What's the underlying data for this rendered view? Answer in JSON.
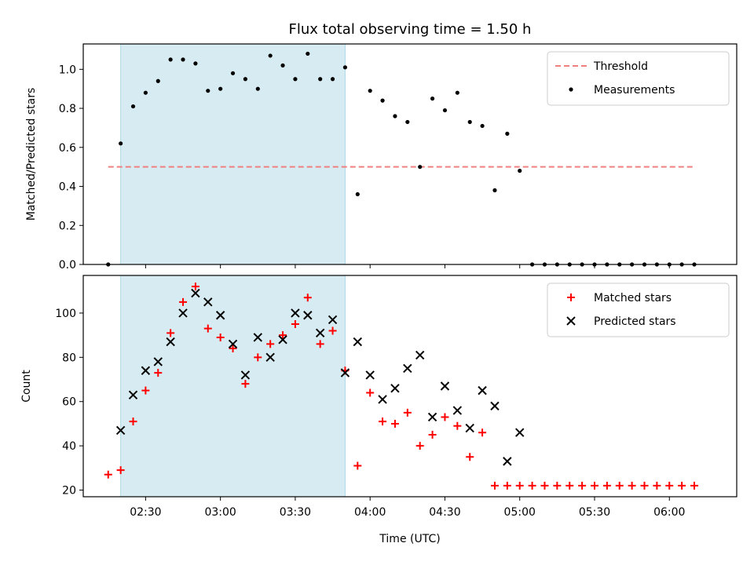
{
  "chart_data": {
    "title": "Flux total observing time = 1.50 h",
    "xlabel": "Time (UTC)",
    "x_unit": "time of day (UTC), minutes shown as HH:MM",
    "xlim": [
      "02:05",
      "06:27"
    ],
    "xticks": [
      "02:30",
      "03:00",
      "03:30",
      "04:00",
      "04:30",
      "05:00",
      "05:30",
      "06:00"
    ],
    "shaded_span": {
      "start": "02:20",
      "end": "03:50",
      "color": "#add8e6"
    },
    "panels": [
      {
        "type": "scatter",
        "ylabel": "Matched/Predicted stars",
        "ylim": [
          0,
          1.13
        ],
        "yticks": [
          "0.0",
          "0.2",
          "0.4",
          "0.6",
          "0.8",
          "1.0"
        ],
        "legend_position": "upper right",
        "threshold": {
          "name": "Threshold",
          "value": 0.5,
          "start": "02:15",
          "end": "06:10",
          "color": "#f08080"
        },
        "series": [
          {
            "name": "Measurements",
            "marker": "dot",
            "color": "#000000",
            "x": [
              "02:15",
              "02:20",
              "02:25",
              "02:30",
              "02:35",
              "02:40",
              "02:45",
              "02:50",
              "02:55",
              "03:00",
              "03:05",
              "03:10",
              "03:15",
              "03:20",
              "03:25",
              "03:30",
              "03:35",
              "03:40",
              "03:45",
              "03:50",
              "03:55",
              "04:00",
              "04:05",
              "04:10",
              "04:15",
              "04:20",
              "04:25",
              "04:30",
              "04:35",
              "04:40",
              "04:45",
              "04:50",
              "04:55",
              "05:00",
              "05:05",
              "05:10",
              "05:15",
              "05:20",
              "05:25",
              "05:30",
              "05:35",
              "05:40",
              "05:45",
              "05:50",
              "05:55",
              "06:00",
              "06:05",
              "06:10"
            ],
            "y": [
              0.0,
              0.62,
              0.81,
              0.88,
              0.94,
              1.05,
              1.05,
              1.03,
              0.89,
              0.9,
              0.98,
              0.95,
              0.9,
              1.07,
              1.02,
              0.95,
              1.08,
              0.95,
              0.95,
              1.01,
              0.36,
              0.89,
              0.84,
              0.76,
              0.73,
              0.5,
              0.85,
              0.79,
              0.88,
              0.73,
              0.71,
              0.38,
              0.67,
              0.48,
              0.0,
              0.0,
              0.0,
              0.0,
              0.0,
              0.0,
              0.0,
              0.0,
              0.0,
              0.0,
              0.0,
              0.0,
              0.0,
              0.0
            ]
          }
        ]
      },
      {
        "type": "scatter",
        "ylabel": "Count",
        "ylim": [
          17,
          117
        ],
        "yticks": [
          "20",
          "40",
          "60",
          "80",
          "100"
        ],
        "legend_position": "upper right",
        "series": [
          {
            "name": "Matched stars",
            "marker": "plus",
            "color": "#ff0000",
            "x": [
              "02:15",
              "02:20",
              "02:25",
              "02:30",
              "02:35",
              "02:40",
              "02:45",
              "02:50",
              "02:55",
              "03:00",
              "03:05",
              "03:10",
              "03:15",
              "03:20",
              "03:25",
              "03:30",
              "03:35",
              "03:40",
              "03:45",
              "03:50",
              "03:55",
              "04:00",
              "04:05",
              "04:10",
              "04:15",
              "04:20",
              "04:25",
              "04:30",
              "04:35",
              "04:40",
              "04:45",
              "04:50",
              "04:55",
              "05:00",
              "05:05",
              "05:10",
              "05:15",
              "05:20",
              "05:25",
              "05:30",
              "05:35",
              "05:40",
              "05:45",
              "05:50",
              "05:55",
              "06:00",
              "06:05",
              "06:10"
            ],
            "y": [
              27,
              29,
              51,
              65,
              73,
              91,
              105,
              112,
              93,
              89,
              84,
              68,
              80,
              86,
              90,
              95,
              107,
              86,
              92,
              74,
              31,
              64,
              51,
              50,
              55,
              40,
              45,
              53,
              49,
              35,
              46,
              22,
              22,
              22,
              22,
              22,
              22,
              22,
              22,
              22,
              22,
              22,
              22,
              22,
              22,
              22,
              22,
              22
            ]
          },
          {
            "name": "Predicted stars",
            "marker": "x",
            "color": "#000000",
            "x": [
              "02:20",
              "02:25",
              "02:30",
              "02:35",
              "02:40",
              "02:45",
              "02:50",
              "02:55",
              "03:00",
              "03:05",
              "03:10",
              "03:15",
              "03:20",
              "03:25",
              "03:30",
              "03:35",
              "03:40",
              "03:45",
              "03:50",
              "03:55",
              "04:00",
              "04:05",
              "04:10",
              "04:15",
              "04:20",
              "04:25",
              "04:30",
              "04:35",
              "04:40",
              "04:45",
              "04:50",
              "04:55",
              "05:00"
            ],
            "y": [
              47,
              63,
              74,
              78,
              87,
              100,
              109,
              105,
              99,
              86,
              72,
              89,
              80,
              88,
              100,
              99,
              91,
              97,
              73,
              87,
              72,
              61,
              66,
              75,
              81,
              53,
              67,
              56,
              48,
              65,
              58,
              33,
              46
            ]
          }
        ]
      }
    ]
  }
}
